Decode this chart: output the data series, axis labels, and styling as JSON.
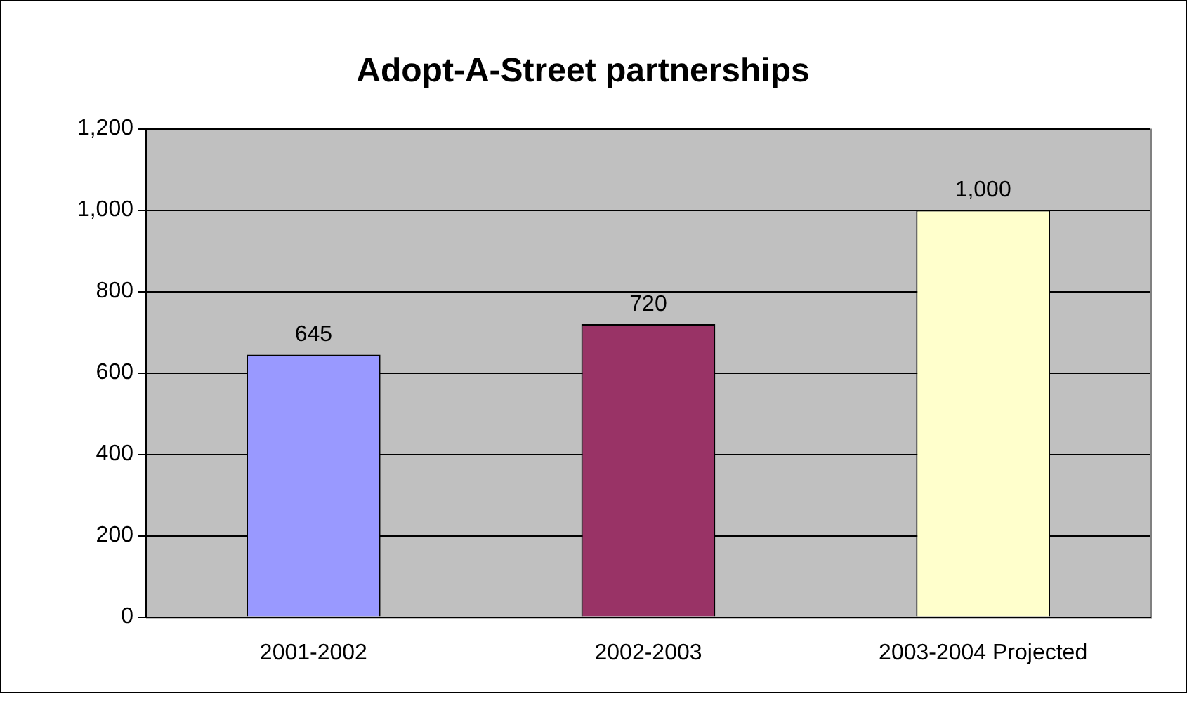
{
  "chart_data": {
    "type": "bar",
    "title": "Adopt-A-Street partnerships",
    "categories": [
      "2001-2002",
      "2002-2003",
      "2003-2004 Projected"
    ],
    "values": [
      645,
      720,
      1000
    ],
    "colors": [
      "#9999ff",
      "#993366",
      "#ffffcc"
    ],
    "value_labels": [
      "645",
      "720",
      "1,000"
    ],
    "ylim": [
      0,
      1200
    ],
    "yticks": [
      0,
      200,
      400,
      600,
      800,
      {
        "value": 1000,
        "label": "1,000"
      },
      {
        "value": 1200,
        "label": "1,200"
      }
    ],
    "grid": "y",
    "legend": false
  }
}
